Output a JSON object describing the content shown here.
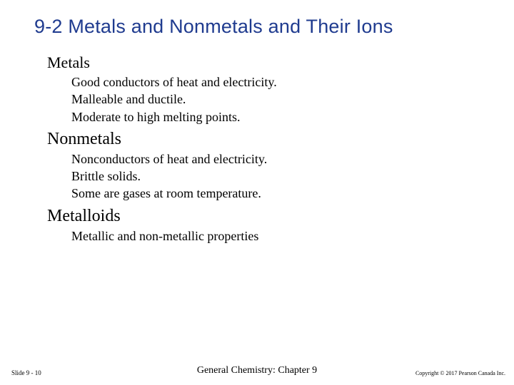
{
  "title": "9-2   Metals and Nonmetals and Their Ions",
  "sections": [
    {
      "heading": "Metals",
      "heading_class": "section-head",
      "items": [
        "Good conductors of heat and electricity.",
        "Malleable and ductile.",
        "Moderate to high melting points."
      ]
    },
    {
      "heading": "Nonmetals",
      "heading_class": "section-head big",
      "items": [
        "Nonconductors of heat and electricity.",
        "Brittle solids.",
        "Some are gases at room temperature."
      ]
    },
    {
      "heading": "Metalloids",
      "heading_class": "section-head big",
      "items": [
        "Metallic and non-metallic properties"
      ]
    }
  ],
  "footer": {
    "slide_number": "Slide 9 - 10",
    "center": "General Chemistry: Chapter 9",
    "copyright": "Copyright © 2017 Pearson Canada Inc."
  },
  "colors": {
    "title_color": "#1f3b8f",
    "text_color": "#000000",
    "background": "#ffffff"
  },
  "fonts": {
    "title_family": "Arial",
    "body_family": "Times New Roman",
    "title_size_pt": 20,
    "section_head_size_pt": 17,
    "bullet_size_pt": 14,
    "footer_center_size_pt": 11,
    "footer_small_size_pt": 7
  }
}
